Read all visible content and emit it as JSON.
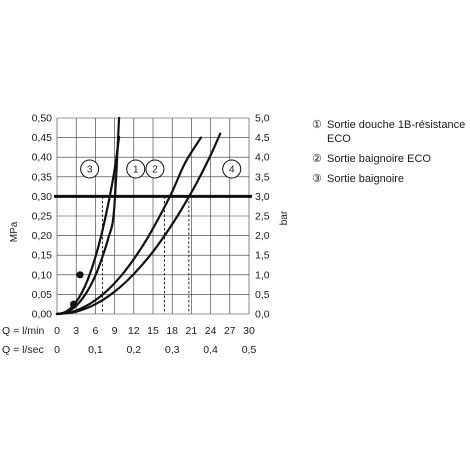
{
  "chart_data": {
    "type": "line",
    "title": "",
    "xlabel_rows": [
      {
        "label": "Q = l/min",
        "ticks": [
          "0",
          "3",
          "6",
          "9",
          "12",
          "15",
          "18",
          "21",
          "24",
          "27",
          "30"
        ]
      },
      {
        "label": "Q = l/sec",
        "ticks": [
          "0",
          "0,1",
          "0,2",
          "0,3",
          "0,4",
          "0,5"
        ]
      }
    ],
    "ylabel_left": "MPa",
    "ylabel_right": "bar",
    "xlim": [
      0,
      30
    ],
    "ylim": [
      0,
      0.5
    ],
    "y_ticks_left": [
      "0,00",
      "0,05",
      "0,10",
      "0,15",
      "0,20",
      "0,25",
      "0,30",
      "0,35",
      "0,40",
      "0,45",
      "0,50"
    ],
    "y_ticks_right": [
      "0,0",
      "0,5",
      "1,0",
      "1,5",
      "2,0",
      "2,5",
      "3,0",
      "3,5",
      "4,0",
      "4,5",
      "5,0"
    ],
    "grid": true,
    "reference_line": {
      "y": 0.3
    },
    "series": [
      {
        "name": "3",
        "x": [
          0,
          1,
          2,
          3,
          4,
          5,
          6,
          7,
          8,
          9,
          9.7
        ],
        "y": [
          0,
          0.003,
          0.013,
          0.031,
          0.058,
          0.096,
          0.145,
          0.206,
          0.28,
          0.368,
          0.452
        ],
        "dashed_drop": {
          "x": 7.1,
          "y": 0.3
        },
        "marker": {
          "x": 3.6,
          "y": 0.1
        }
      },
      {
        "name": "1",
        "x": [
          0,
          1,
          2,
          3,
          4,
          5,
          6,
          7,
          8,
          8.9,
          9.7
        ],
        "y": [
          0,
          0.002,
          0.009,
          0.021,
          0.04,
          0.065,
          0.098,
          0.141,
          0.193,
          0.262,
          0.5
        ],
        "marker": {
          "x": 2.6,
          "y": 0.025
        }
      },
      {
        "name": "2",
        "x": [
          0,
          2,
          4,
          6,
          8,
          10,
          12,
          14,
          16,
          18,
          20,
          22.5
        ],
        "y": [
          0,
          0.004,
          0.016,
          0.035,
          0.062,
          0.097,
          0.14,
          0.19,
          0.248,
          0.312,
          0.385,
          0.45
        ],
        "dashed_drop": {
          "x": 16.8,
          "y": 0.3
        }
      },
      {
        "name": "4",
        "x": [
          0,
          3,
          6,
          9,
          12,
          15,
          18,
          20,
          22,
          24,
          25.5
        ],
        "y": [
          0,
          0.006,
          0.025,
          0.057,
          0.102,
          0.159,
          0.229,
          0.282,
          0.34,
          0.405,
          0.46
        ],
        "dashed_drop": {
          "x": 20.6,
          "y": 0.3
        }
      }
    ],
    "circle_labels": [
      "3",
      "1",
      "2",
      "4"
    ],
    "legend": [
      {
        "num": "①",
        "text": "Sortie douche 1B-résistance ECO"
      },
      {
        "num": "②",
        "text": "Sortie baignoire ECO"
      },
      {
        "num": "③",
        "text": "Sortie baignoire"
      }
    ]
  }
}
